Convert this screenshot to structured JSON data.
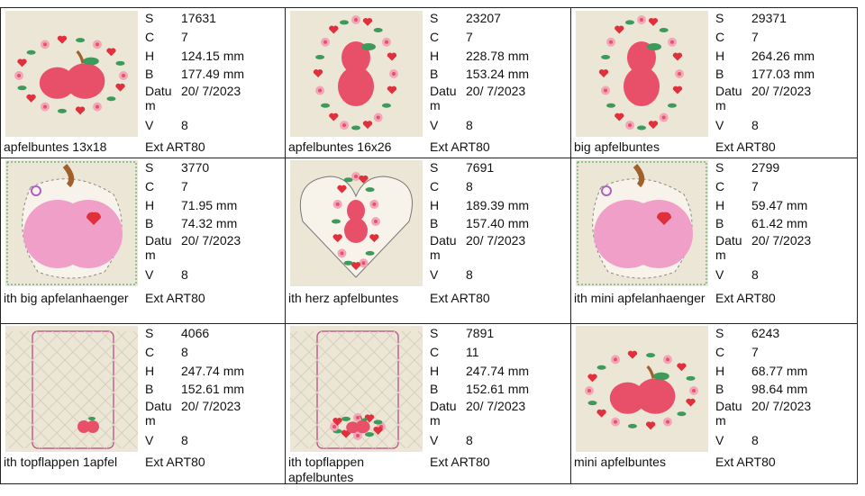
{
  "labels": {
    "s": "S",
    "c": "C",
    "h": "H",
    "b": "B",
    "datum_1": "Datu",
    "datum_2": "m",
    "v": "V",
    "ext": "Ext"
  },
  "designs": [
    {
      "name": "apfelbuntes 13x18",
      "s": "17631",
      "c": "7",
      "h": "124.15 mm",
      "b": "177.49 mm",
      "datum": "20/ 7/2023",
      "v": "8",
      "ext": "ART80"
    },
    {
      "name": "apfelbuntes 16x26",
      "s": "23207",
      "c": "7",
      "h": "228.78 mm",
      "b": "153.24 mm",
      "datum": "20/ 7/2023",
      "v": "8",
      "ext": "ART80"
    },
    {
      "name": "big apfelbuntes",
      "s": "29371",
      "c": "7",
      "h": "264.26 mm",
      "b": "177.03 mm",
      "datum": "20/ 7/2023",
      "v": "8",
      "ext": "ART80"
    },
    {
      "name": "ith big apfelanhaenger",
      "s": "3770",
      "c": "7",
      "h": "71.95 mm",
      "b": "74.32 mm",
      "datum": "20/ 7/2023",
      "v": "8",
      "ext": "ART80"
    },
    {
      "name": "ith herz apfelbuntes",
      "s": "7691",
      "c": "8",
      "h": "189.39 mm",
      "b": "157.40 mm",
      "datum": "20/ 7/2023",
      "v": "8",
      "ext": "ART80"
    },
    {
      "name": "ith mini apfelanhaenger",
      "s": "2799",
      "c": "7",
      "h": "59.47 mm",
      "b": "61.42 mm",
      "datum": "20/ 7/2023",
      "v": "8",
      "ext": "ART80"
    },
    {
      "name": "ith topflappen 1apfel",
      "s": "4066",
      "c": "8",
      "h": "247.74 mm",
      "b": "152.61 mm",
      "datum": "20/ 7/2023",
      "v": "8",
      "ext": "ART80"
    },
    {
      "name": "ith topflappen apfelbuntes",
      "s": "7891",
      "c": "11",
      "h": "247.74 mm",
      "b": "152.61 mm",
      "datum": "20/ 7/2023",
      "v": "8",
      "ext": "ART80"
    },
    {
      "name": "mini apfelbuntes",
      "s": "6243",
      "c": "7",
      "h": "68.77 mm",
      "b": "98.64 mm",
      "datum": "20/ 7/2023",
      "v": "8",
      "ext": "ART80"
    }
  ],
  "colors": {
    "thumb_bg": "#ece6d6",
    "apple_red": "#e8506a",
    "apple_pink": "#f0a0c8",
    "heart_red": "#e0303c",
    "leaf_green": "#3c9a5a",
    "stem_brown": "#a0622a",
    "border": "#222222"
  }
}
